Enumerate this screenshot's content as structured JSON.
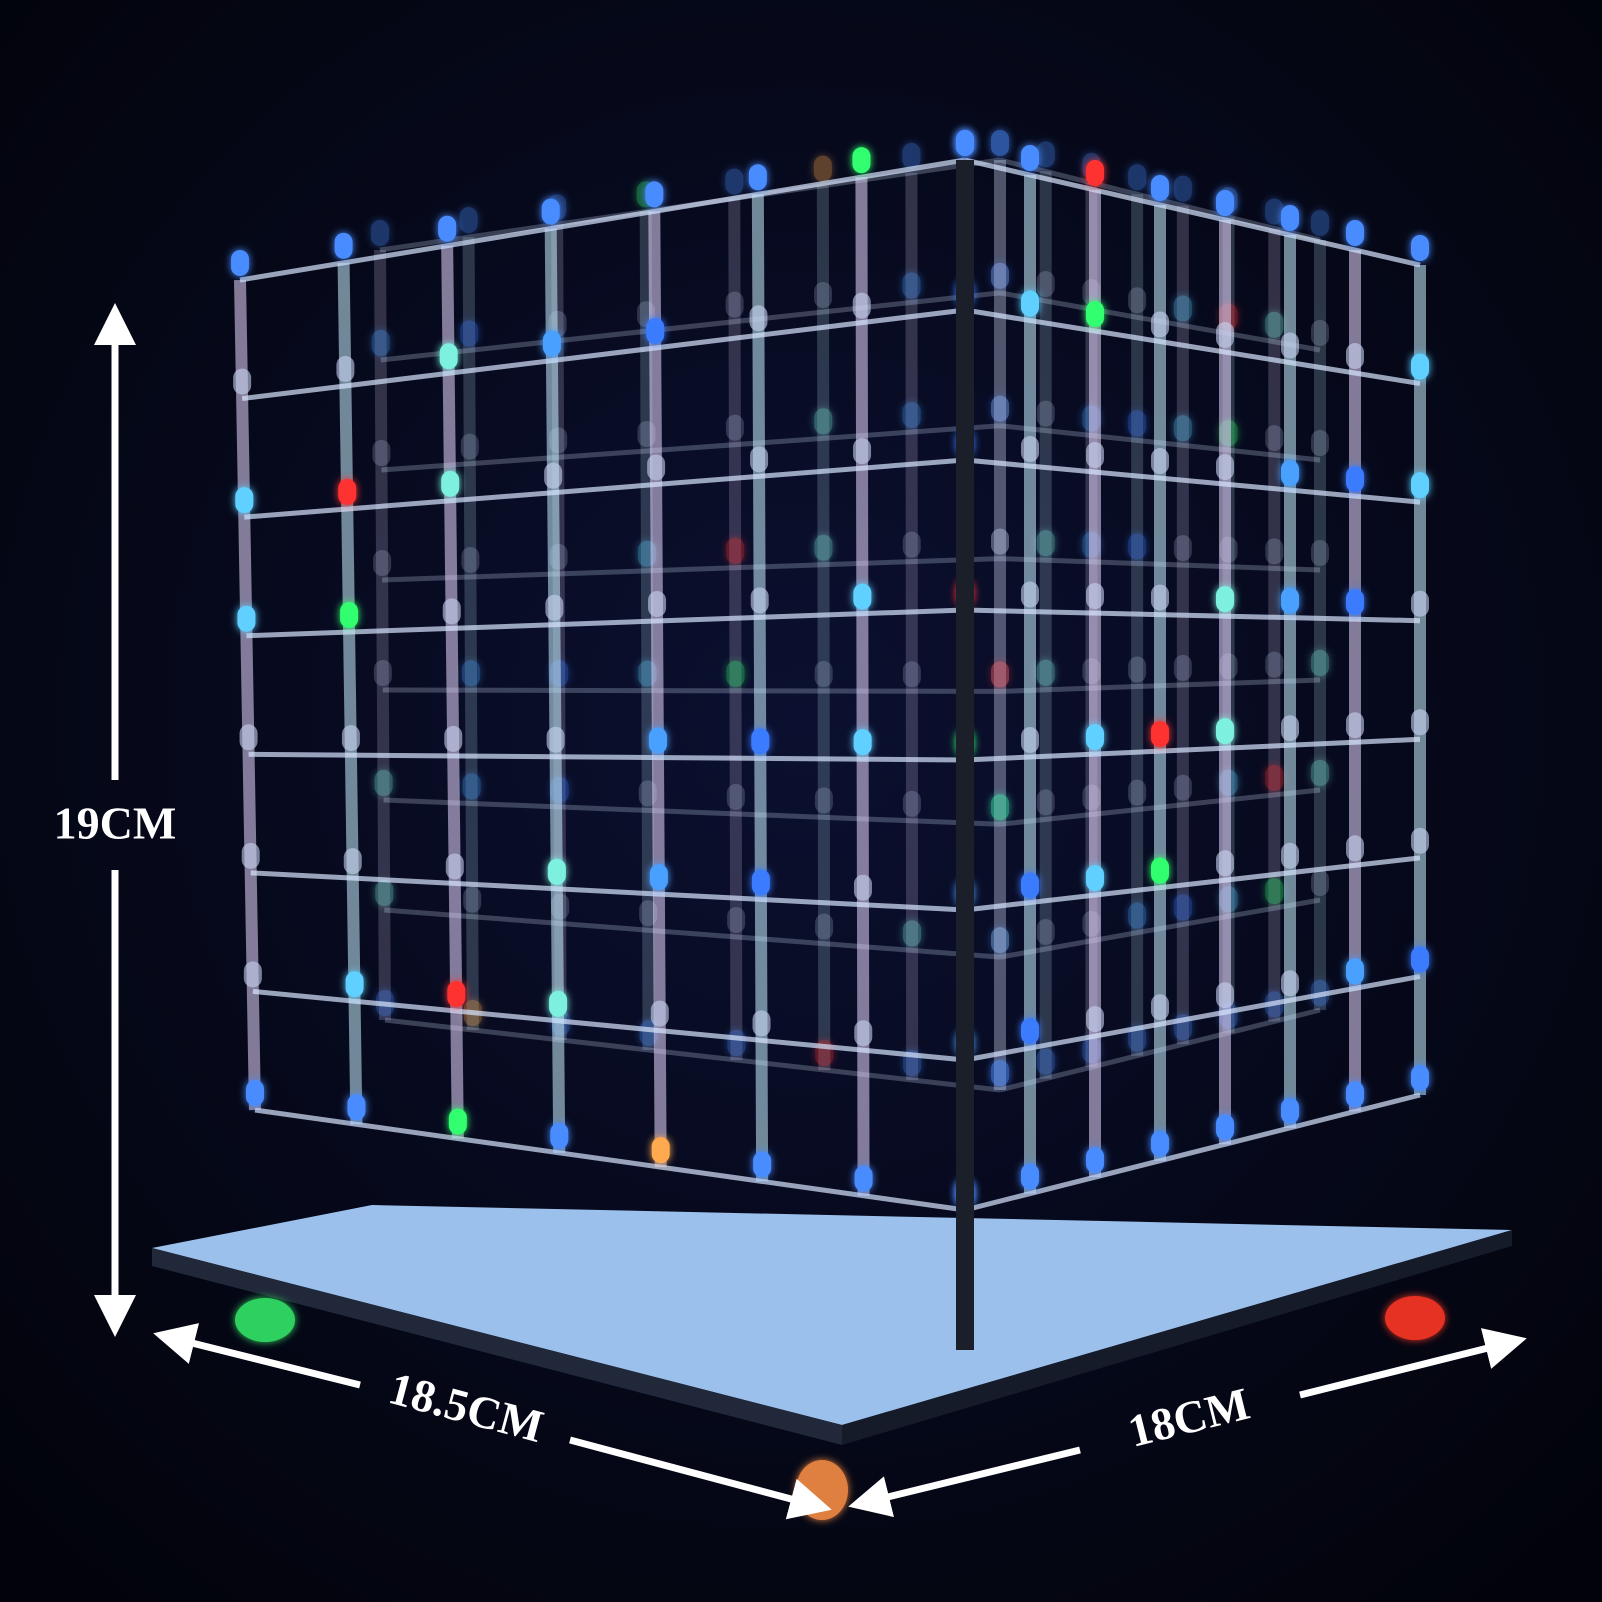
{
  "dimensions": {
    "height": "19CM",
    "width": "18.5CM",
    "depth": "18CM"
  }
}
